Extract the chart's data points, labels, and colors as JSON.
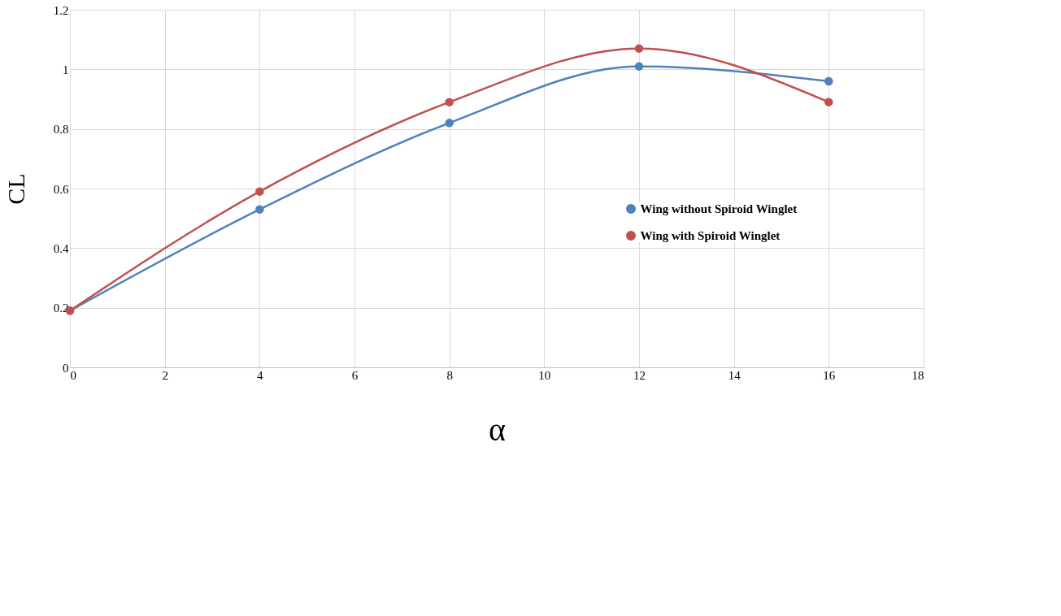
{
  "chart_data": {
    "type": "line",
    "xlabel": "α",
    "ylabel": "CL",
    "x": [
      0,
      4,
      8,
      12,
      16
    ],
    "series": [
      {
        "name": "Wing without Spiroid Winglet",
        "color": "#4f81bd",
        "values": [
          0.19,
          0.53,
          0.82,
          1.01,
          0.96
        ]
      },
      {
        "name": "Wing with Spiroid Winglet",
        "color": "#c0504d",
        "values": [
          0.19,
          0.59,
          0.89,
          1.07,
          0.89
        ]
      }
    ],
    "xlim": [
      0,
      18
    ],
    "xticks": [
      0,
      2,
      4,
      6,
      8,
      10,
      12,
      14,
      16,
      18
    ],
    "ylim": [
      0,
      1.2
    ],
    "yticks": [
      0,
      0.2,
      0.4,
      0.6,
      0.8,
      1,
      1.2
    ],
    "grid": true,
    "legend": "right",
    "marker": "circle",
    "line_style": "solid"
  }
}
